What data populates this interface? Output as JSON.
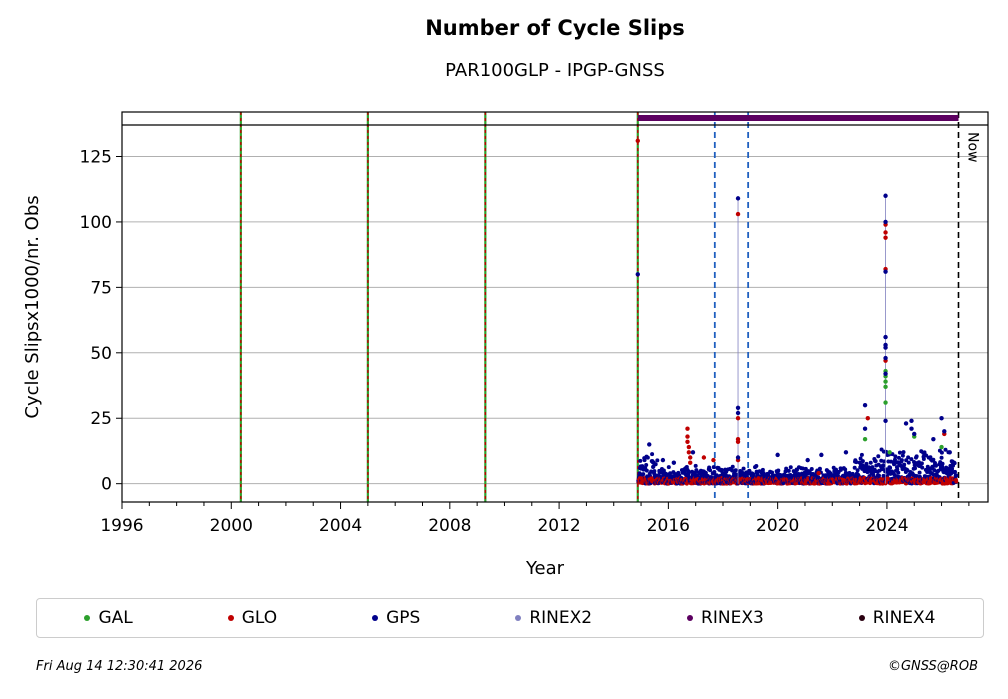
{
  "chart_data": {
    "type": "scatter",
    "title": "Number of Cycle Slips",
    "subtitle": "PAR100GLP - IPGP-GNSS",
    "xlabel": "Year",
    "ylabel": "Cycle Slipsx1000/nr. Obs",
    "xlim": [
      1996,
      2027.7
    ],
    "ylim": [
      -7,
      142
    ],
    "xticks": [
      "1996",
      "2000",
      "2004",
      "2008",
      "2012",
      "2016",
      "2020",
      "2024"
    ],
    "yticks": [
      "0",
      "25",
      "50",
      "75",
      "100",
      "125"
    ],
    "grid": "horizontal",
    "legend_position": "bottom",
    "now_label": "Now",
    "now_year": 2026.62,
    "event_lines_green_red": [
      2000.35,
      2005.0,
      2009.3,
      2014.88
    ],
    "event_lines_blue_dashed": [
      2017.7,
      2018.92
    ],
    "rinex3_bar": [
      2014.88,
      2026.62
    ],
    "series": [
      {
        "name": "GAL",
        "color": "#2ca02c",
        "points": [
          [
            2023.95,
            43
          ],
          [
            2023.95,
            41
          ],
          [
            2023.95,
            39
          ],
          [
            2023.95,
            37
          ],
          [
            2023.95,
            31
          ],
          [
            2023.2,
            17
          ],
          [
            2025.0,
            18
          ],
          [
            2026.0,
            14
          ],
          [
            2024.1,
            12
          ]
        ]
      },
      {
        "name": "GLO",
        "color": "#c00000",
        "points": [
          [
            2014.88,
            131
          ],
          [
            2016.7,
            21
          ],
          [
            2016.7,
            18
          ],
          [
            2016.7,
            16
          ],
          [
            2016.75,
            14
          ],
          [
            2016.75,
            12
          ],
          [
            2016.8,
            10
          ],
          [
            2016.8,
            8
          ],
          [
            2017.3,
            10
          ],
          [
            2017.65,
            9
          ],
          [
            2018.55,
            103
          ],
          [
            2018.55,
            25
          ],
          [
            2018.55,
            17
          ],
          [
            2018.55,
            16
          ],
          [
            2018.55,
            9
          ],
          [
            2023.95,
            99
          ],
          [
            2023.95,
            96
          ],
          [
            2023.95,
            94
          ],
          [
            2023.95,
            82
          ],
          [
            2023.95,
            47
          ],
          [
            2023.3,
            25
          ],
          [
            2026.1,
            19
          ],
          [
            2021.5,
            4
          ],
          [
            2019.3,
            2
          ]
        ]
      },
      {
        "name": "GPS",
        "color": "#00008b",
        "points": [
          [
            2014.88,
            80
          ],
          [
            2015.3,
            15
          ],
          [
            2015.8,
            9
          ],
          [
            2016.2,
            8
          ],
          [
            2016.9,
            12
          ],
          [
            2017.8,
            6
          ],
          [
            2018.55,
            109
          ],
          [
            2018.55,
            29
          ],
          [
            2018.55,
            27
          ],
          [
            2018.55,
            10
          ],
          [
            2020.0,
            11
          ],
          [
            2021.1,
            9
          ],
          [
            2021.6,
            11
          ],
          [
            2022.5,
            12
          ],
          [
            2023.2,
            30
          ],
          [
            2023.2,
            21
          ],
          [
            2023.95,
            110
          ],
          [
            2023.95,
            100
          ],
          [
            2023.95,
            81
          ],
          [
            2023.95,
            56
          ],
          [
            2023.95,
            53
          ],
          [
            2023.95,
            52
          ],
          [
            2023.95,
            48
          ],
          [
            2023.95,
            42
          ],
          [
            2023.95,
            24
          ],
          [
            2024.7,
            23
          ],
          [
            2024.9,
            24
          ],
          [
            2024.9,
            21
          ],
          [
            2025.0,
            19
          ],
          [
            2025.7,
            17
          ],
          [
            2026.0,
            25
          ],
          [
            2026.1,
            20
          ],
          [
            2026.3,
            12
          ]
        ]
      },
      {
        "name": "RINEX2",
        "color": "#8080c0",
        "points": []
      },
      {
        "name": "RINEX3",
        "color": "#5c0060",
        "points": []
      },
      {
        "name": "RINEX4",
        "color": "#2a0010",
        "points": []
      }
    ]
  },
  "legend": {
    "items": [
      {
        "label": "GAL",
        "color": "#2ca02c"
      },
      {
        "label": "GLO",
        "color": "#c00000"
      },
      {
        "label": "GPS",
        "color": "#00008b"
      },
      {
        "label": "RINEX2",
        "color": "#8080c0"
      },
      {
        "label": "RINEX3",
        "color": "#5c0060"
      },
      {
        "label": "RINEX4",
        "color": "#2a0010"
      }
    ]
  },
  "footer": {
    "timestamp": "Fri Aug 14 12:30:41 2026",
    "copyright": "©GNSS@ROB"
  }
}
